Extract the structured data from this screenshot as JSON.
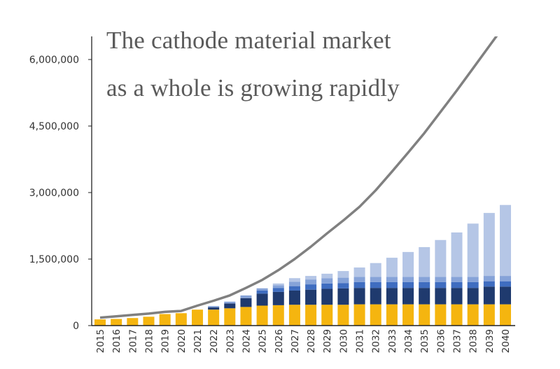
{
  "chart_data": {
    "type": "bar",
    "stacked": true,
    "title_lines": [
      "The cathode material market",
      "as a whole is growing rapidly"
    ],
    "xlabel": "",
    "ylabel": "",
    "ylim": [
      0,
      6500000
    ],
    "yticks": [
      0,
      1500000,
      3000000,
      4500000,
      6000000
    ],
    "ytick_labels": [
      "0",
      "1,500,000",
      "3,000,000",
      "4,500,000",
      "6,000,000"
    ],
    "grid": false,
    "legend": "none",
    "categories": [
      "2015",
      "2016",
      "2017",
      "2018",
      "2019",
      "2020",
      "2021",
      "2022",
      "2023",
      "2024",
      "2025",
      "2026",
      "2027",
      "2028",
      "2029",
      "2030",
      "2031",
      "2032",
      "2033",
      "2034",
      "2035",
      "2036",
      "2037",
      "2038",
      "2039",
      "2040"
    ],
    "series": [
      {
        "color": "#f5b50f",
        "values": [
          140000,
          150000,
          170000,
          200000,
          260000,
          280000,
          360000,
          360000,
          390000,
          420000,
          450000,
          460000,
          470000,
          470000,
          470000,
          470000,
          480000,
          480000,
          480000,
          480000,
          480000,
          480000,
          480000,
          480000,
          480000,
          480000
        ]
      },
      {
        "color": "#1f3a6e",
        "values": [
          0,
          0,
          0,
          0,
          0,
          0,
          0,
          50000,
          110000,
          200000,
          270000,
          300000,
          320000,
          340000,
          360000,
          370000,
          370000,
          370000,
          370000,
          370000,
          370000,
          370000,
          370000,
          370000,
          400000,
          400000
        ]
      },
      {
        "color": "#3f6dc0",
        "values": [
          0,
          0,
          0,
          0,
          0,
          0,
          0,
          0,
          0,
          0,
          70000,
          90000,
          100000,
          120000,
          120000,
          120000,
          130000,
          130000,
          130000,
          130000,
          130000,
          130000,
          130000,
          130000,
          120000,
          120000
        ]
      },
      {
        "color": "#86a3d8",
        "values": [
          0,
          0,
          0,
          0,
          0,
          0,
          0,
          30000,
          40000,
          60000,
          50000,
          60000,
          100000,
          110000,
          120000,
          120000,
          120000,
          120000,
          120000,
          120000,
          120000,
          120000,
          120000,
          120000,
          120000,
          120000
        ]
      },
      {
        "color": "#b5c6e6",
        "values": [
          0,
          0,
          0,
          0,
          0,
          0,
          0,
          0,
          0,
          0,
          0,
          40000,
          80000,
          80000,
          100000,
          150000,
          210000,
          310000,
          430000,
          560000,
          670000,
          830000,
          1000000,
          1200000,
          1420000,
          1600000
        ]
      }
    ],
    "line": {
      "color": "#808080",
      "values": [
        180000,
        210000,
        240000,
        270000,
        310000,
        330000,
        450000,
        560000,
        680000,
        850000,
        1030000,
        1250000,
        1500000,
        1780000,
        2080000,
        2370000,
        2680000,
        3050000,
        3470000,
        3900000,
        4340000,
        4820000,
        5300000,
        5800000,
        6300000,
        6800000
      ]
    }
  }
}
